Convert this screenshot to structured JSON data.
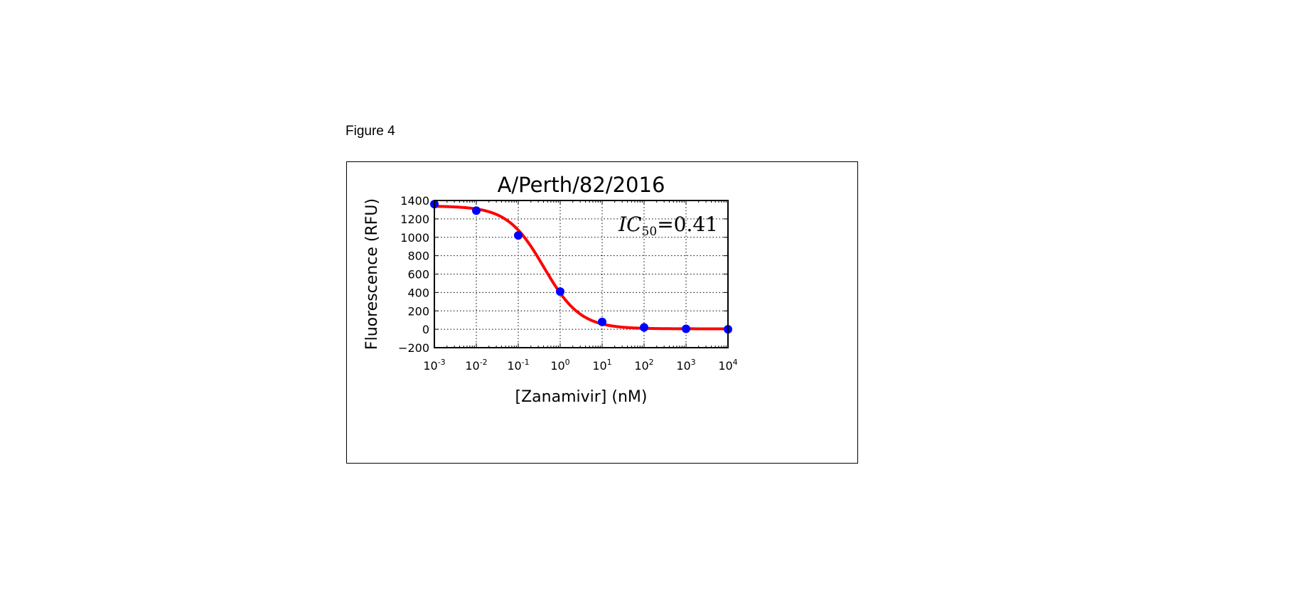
{
  "figure": {
    "caption": "Figure 4"
  },
  "chart_data": {
    "type": "scatter",
    "title": "A/Perth/82/2016",
    "xlabel": "[Zanamivir] (nM)",
    "ylabel": "Fluorescence (RFU)",
    "x_scale": "log",
    "xlim": [
      0.001,
      10000
    ],
    "ylim": [
      -200,
      1400
    ],
    "y_ticks": [
      -200,
      0,
      200,
      400,
      600,
      800,
      1000,
      1200,
      1400
    ],
    "y_tick_labels": [
      "−200",
      "0",
      "200",
      "400",
      "600",
      "800",
      "1000",
      "1200",
      "1400"
    ],
    "x_ticks": [
      0.001,
      0.01,
      0.1,
      1,
      10,
      100,
      1000,
      10000
    ],
    "x_tick_labels": [
      {
        "base": "10",
        "exp": "-3"
      },
      {
        "base": "10",
        "exp": "-2"
      },
      {
        "base": "10",
        "exp": "-1"
      },
      {
        "base": "10",
        "exp": "0"
      },
      {
        "base": "10",
        "exp": "1"
      },
      {
        "base": "10",
        "exp": "2"
      },
      {
        "base": "10",
        "exp": "3"
      },
      {
        "base": "10",
        "exp": "4"
      }
    ],
    "grid": true,
    "series": [
      {
        "kind": "points",
        "color": "#0000ff",
        "x": [
          0.001,
          0.01,
          0.1,
          1,
          10,
          100,
          1000,
          10000
        ],
        "y": [
          1360,
          1290,
          1020,
          410,
          80,
          20,
          5,
          0
        ]
      },
      {
        "kind": "fit-curve",
        "color": "#ff0000",
        "model": "four-parameter-logistic",
        "bottom": 5,
        "top": 1340,
        "ic50": 0.41,
        "hill": 1.0
      }
    ],
    "annotation": {
      "text_main": "IC",
      "text_sub": "50",
      "text_rest": "=0.41",
      "position": "top-right"
    }
  }
}
